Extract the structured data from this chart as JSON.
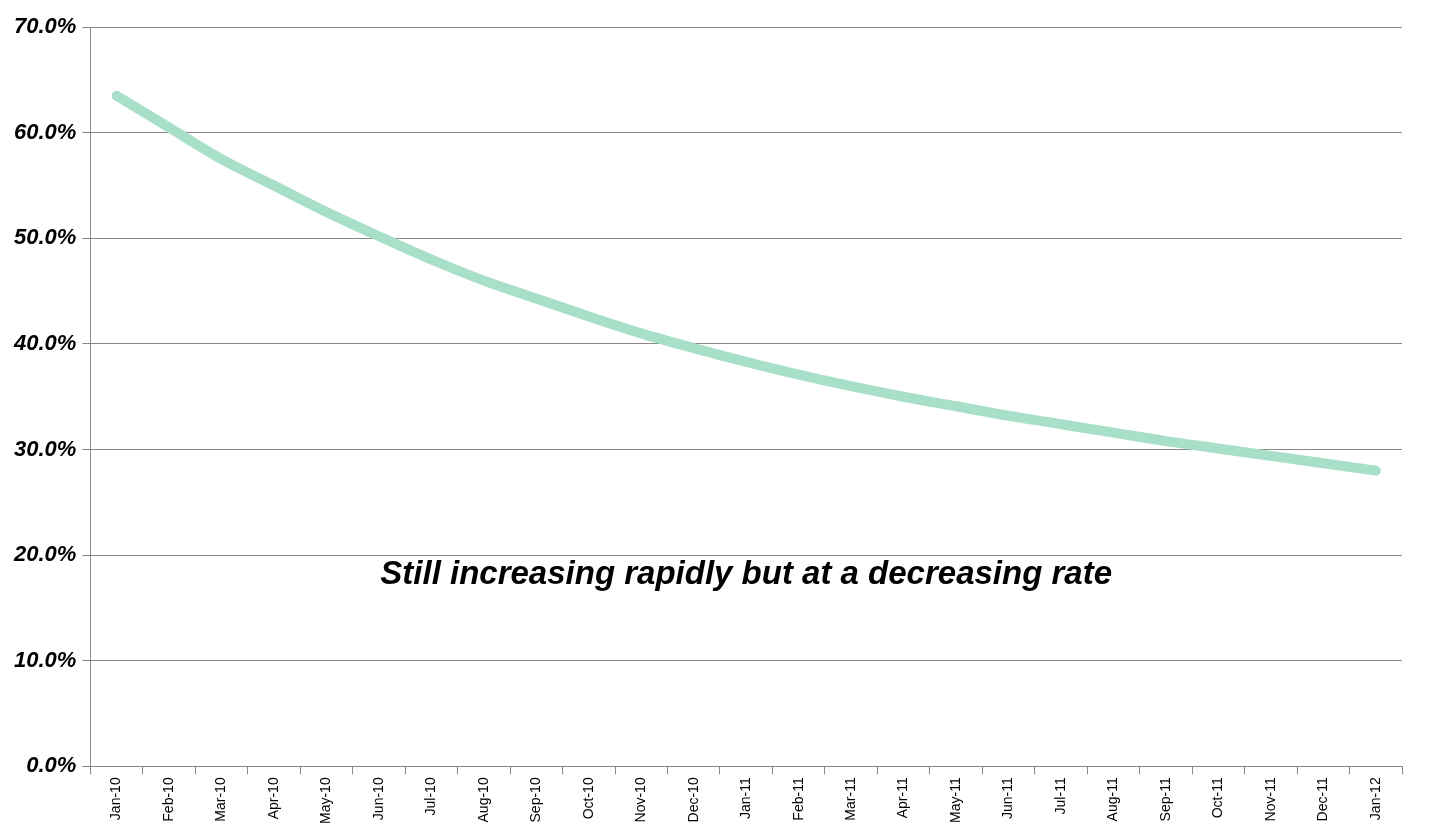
{
  "chart_data": {
    "type": "line",
    "categories": [
      "Jan-10",
      "Feb-10",
      "Mar-10",
      "Apr-10",
      "May-10",
      "Jun-10",
      "Jul-10",
      "Aug-10",
      "Sep-10",
      "Oct-10",
      "Nov-10",
      "Dec-10",
      "Jan-11",
      "Feb-11",
      "Mar-11",
      "Apr-11",
      "May-11",
      "Jun-11",
      "Jul-11",
      "Aug-11",
      "Sep-11",
      "Oct-11",
      "Nov-11",
      "Dec-11",
      "Jan-12"
    ],
    "series": [
      {
        "color": "#a8dfc8",
        "values": [
          63.5,
          60.5,
          57.5,
          55,
          52.5,
          50.2,
          48,
          46,
          44.3,
          42.6,
          41,
          39.6,
          38.3,
          37.1,
          36,
          35,
          34.1,
          33.2,
          32.4,
          31.6,
          30.8,
          30.1,
          29.4,
          28.7,
          28
        ]
      }
    ],
    "ylim": [
      0,
      70
    ],
    "yticks": [
      {
        "value": 0,
        "label": "0.0%"
      },
      {
        "value": 10,
        "label": "10.0%"
      },
      {
        "value": 20,
        "label": "20.0%"
      },
      {
        "value": 30,
        "label": "30.0%"
      },
      {
        "value": 40,
        "label": "40.0%"
      },
      {
        "value": 50,
        "label": "50.0%"
      },
      {
        "value": 60,
        "label": "60.0%"
      },
      {
        "value": 70,
        "label": "70.0%"
      }
    ],
    "grid": "y",
    "legend": false,
    "marker": "none",
    "line_style": "solid",
    "annotations": [
      "Still increasing rapidly but at a decreasing rate"
    ]
  }
}
